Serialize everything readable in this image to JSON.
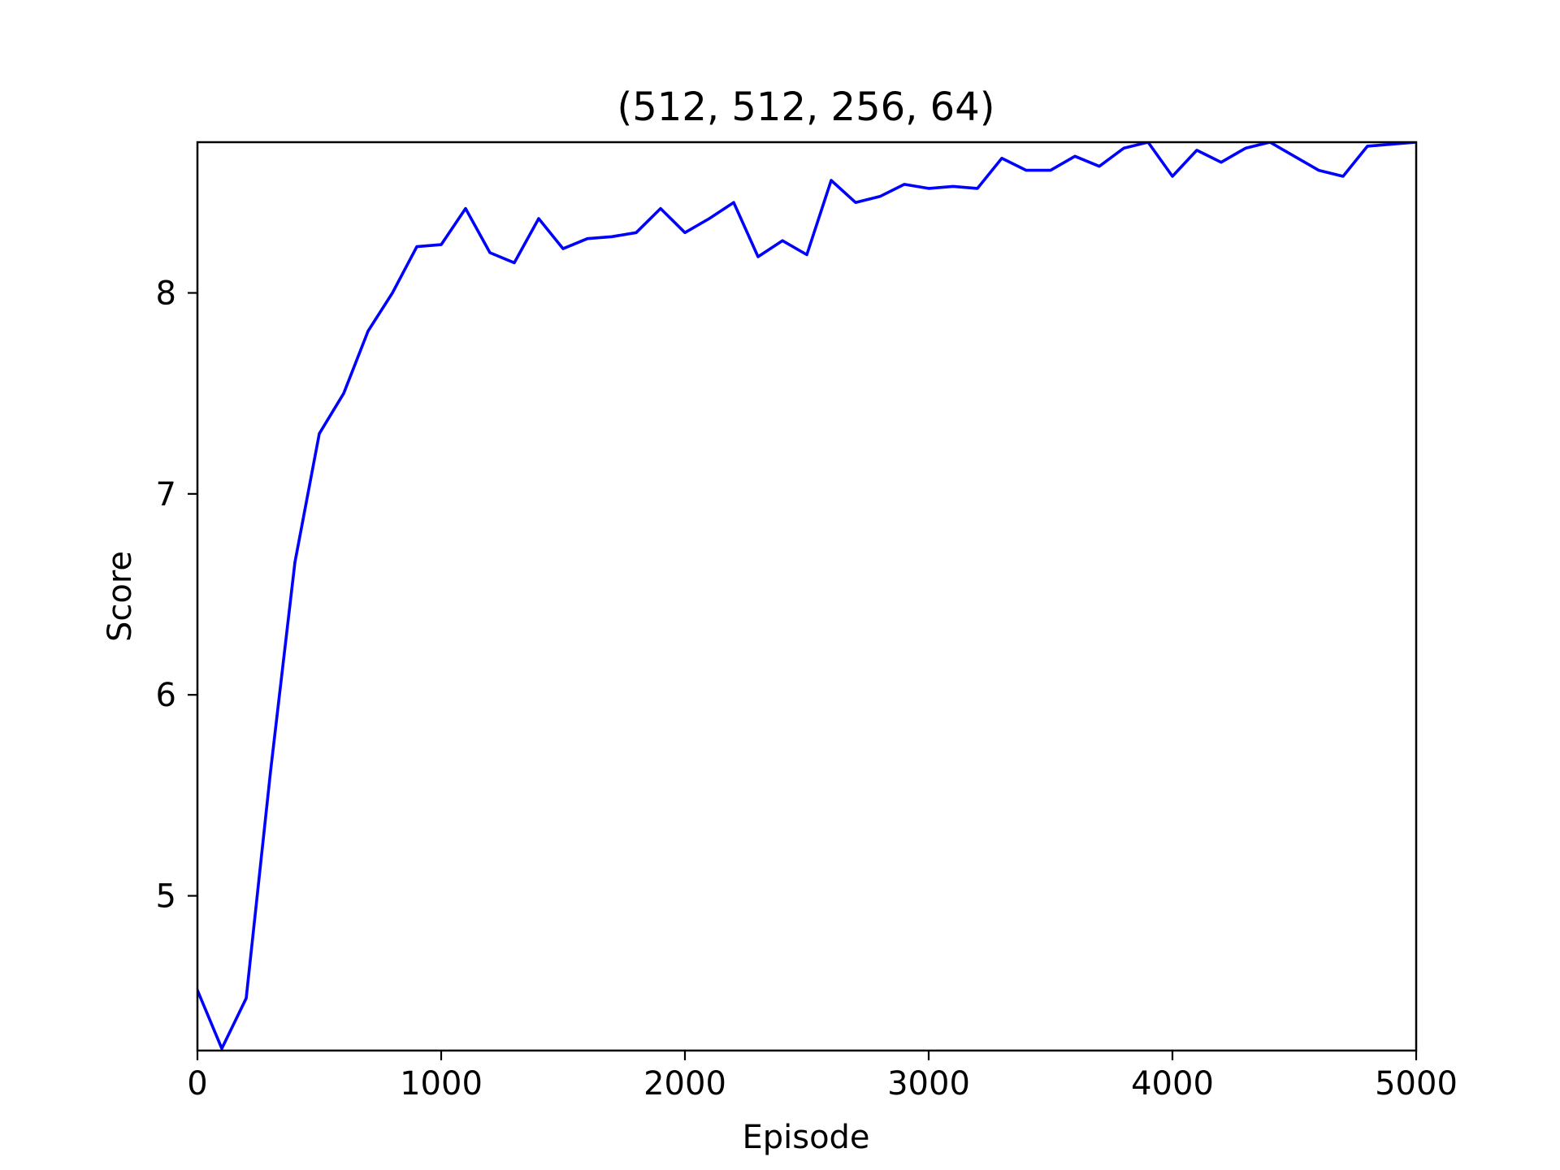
{
  "chart_data": {
    "type": "line",
    "title": "(512, 512, 256, 64)",
    "xlabel": "Episode",
    "ylabel": "Score",
    "xlim": [
      0,
      5000
    ],
    "ylim": [
      4.23,
      8.75
    ],
    "xticks": [
      0,
      1000,
      2000,
      3000,
      4000,
      5000
    ],
    "yticks": [
      5,
      6,
      7,
      8
    ],
    "grid": false,
    "legend": "none",
    "series": [
      {
        "color": "#0000ff",
        "x": [
          0,
          100,
          200,
          300,
          400,
          500,
          600,
          700,
          800,
          900,
          1000,
          1100,
          1200,
          1300,
          1400,
          1500,
          1600,
          1700,
          1800,
          1900,
          2000,
          2100,
          2200,
          2300,
          2400,
          2500,
          2600,
          2700,
          2800,
          2900,
          3000,
          3100,
          3200,
          3300,
          3400,
          3500,
          3600,
          3700,
          3800,
          3900,
          4000,
          4100,
          4200,
          4300,
          4400,
          4500,
          4600,
          4700,
          4800,
          5000
        ],
        "y": [
          4.53,
          4.24,
          4.49,
          5.62,
          6.66,
          7.3,
          7.5,
          7.81,
          8.0,
          8.23,
          8.24,
          8.42,
          8.2,
          8.15,
          8.37,
          8.22,
          8.27,
          8.28,
          8.3,
          8.42,
          8.3,
          8.37,
          8.45,
          8.18,
          8.26,
          8.19,
          8.56,
          8.45,
          8.48,
          8.54,
          8.52,
          8.53,
          8.52,
          8.67,
          8.61,
          8.61,
          8.68,
          8.63,
          8.72,
          8.75,
          8.58,
          8.71,
          8.65,
          8.72,
          8.75,
          8.68,
          8.61,
          8.58,
          8.73,
          8.75
        ]
      }
    ]
  }
}
